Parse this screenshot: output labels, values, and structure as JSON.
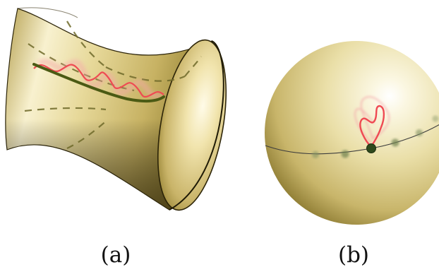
{
  "captions": {
    "a": "(a)",
    "b": "(b)"
  },
  "colors": {
    "surface_gold_light": "#fbf6dc",
    "surface_gold_mid": "#d8c684",
    "surface_gold_dark": "#6d5e1c",
    "geodesic_green": "#4b5a14",
    "path_red": "#f0505a",
    "path_red_faint": "#f7a7ab",
    "equator_line": "#3d3d3d",
    "dot_green": "#2f4a1c",
    "dot_green_faint": "#7f9060"
  }
}
